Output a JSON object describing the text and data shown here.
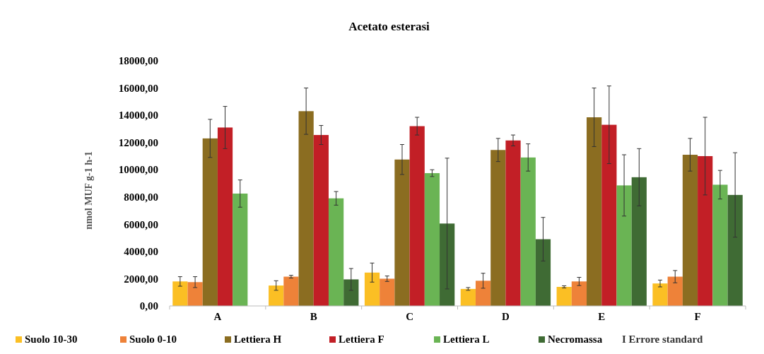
{
  "chart_data": {
    "type": "bar",
    "title": "Acetato esterasi",
    "ylabel": "nmol MUF g-1 h-1",
    "categories": [
      "A",
      "B",
      "C",
      "D",
      "E",
      "F"
    ],
    "series": [
      {
        "name": "Suolo 10-30",
        "color": "#fbbf24",
        "values": [
          1800,
          1500,
          2450,
          1250,
          1400,
          1650
        ],
        "errors": [
          350,
          350,
          700,
          100,
          80,
          250
        ]
      },
      {
        "name": "Suolo 0-10",
        "color": "#ee8239",
        "values": [
          1750,
          2150,
          2000,
          1850,
          1800,
          2150
        ],
        "errors": [
          400,
          100,
          200,
          550,
          300,
          450
        ]
      },
      {
        "name": "Lettiera H",
        "color": "#8b6d21",
        "values": [
          12300,
          14300,
          10750,
          11450,
          13850,
          11100
        ],
        "errors": [
          1400,
          1700,
          1100,
          850,
          2150,
          1200
        ]
      },
      {
        "name": "Lettiera F",
        "color": "#c21f26",
        "values": [
          13100,
          12550,
          13200,
          12150,
          13300,
          11000
        ],
        "errors": [
          1550,
          700,
          650,
          400,
          2850,
          2850
        ]
      },
      {
        "name": "Lettiera L",
        "color": "#6ab454",
        "values": [
          8250,
          7900,
          9750,
          10900,
          8850,
          8900
        ],
        "errors": [
          1000,
          500,
          250,
          1000,
          2250,
          1050
        ]
      },
      {
        "name": "Necromassa",
        "color": "#3f6b34",
        "values": [
          null,
          1950,
          6050,
          4900,
          9450,
          8150
        ],
        "errors": [
          null,
          800,
          4800,
          1600,
          2100,
          3100
        ]
      }
    ],
    "ylim": [
      0,
      18000
    ],
    "yticks": [
      {
        "value": 0,
        "label": "0,00"
      },
      {
        "value": 2000,
        "label": "2000,00"
      },
      {
        "value": 4000,
        "label": "4000,00"
      },
      {
        "value": 6000,
        "label": "6000,00"
      },
      {
        "value": 8000,
        "label": "8000,00"
      },
      {
        "value": 10000,
        "label": "10000,00"
      },
      {
        "value": 12000,
        "label": "12000,00"
      },
      {
        "value": 14000,
        "label": "14000,00"
      },
      {
        "value": 16000,
        "label": "16000,00"
      },
      {
        "value": 18000,
        "label": "18000,00"
      }
    ],
    "grid": false,
    "legend": "bottom",
    "annotations": [
      "I Errore standard"
    ]
  }
}
